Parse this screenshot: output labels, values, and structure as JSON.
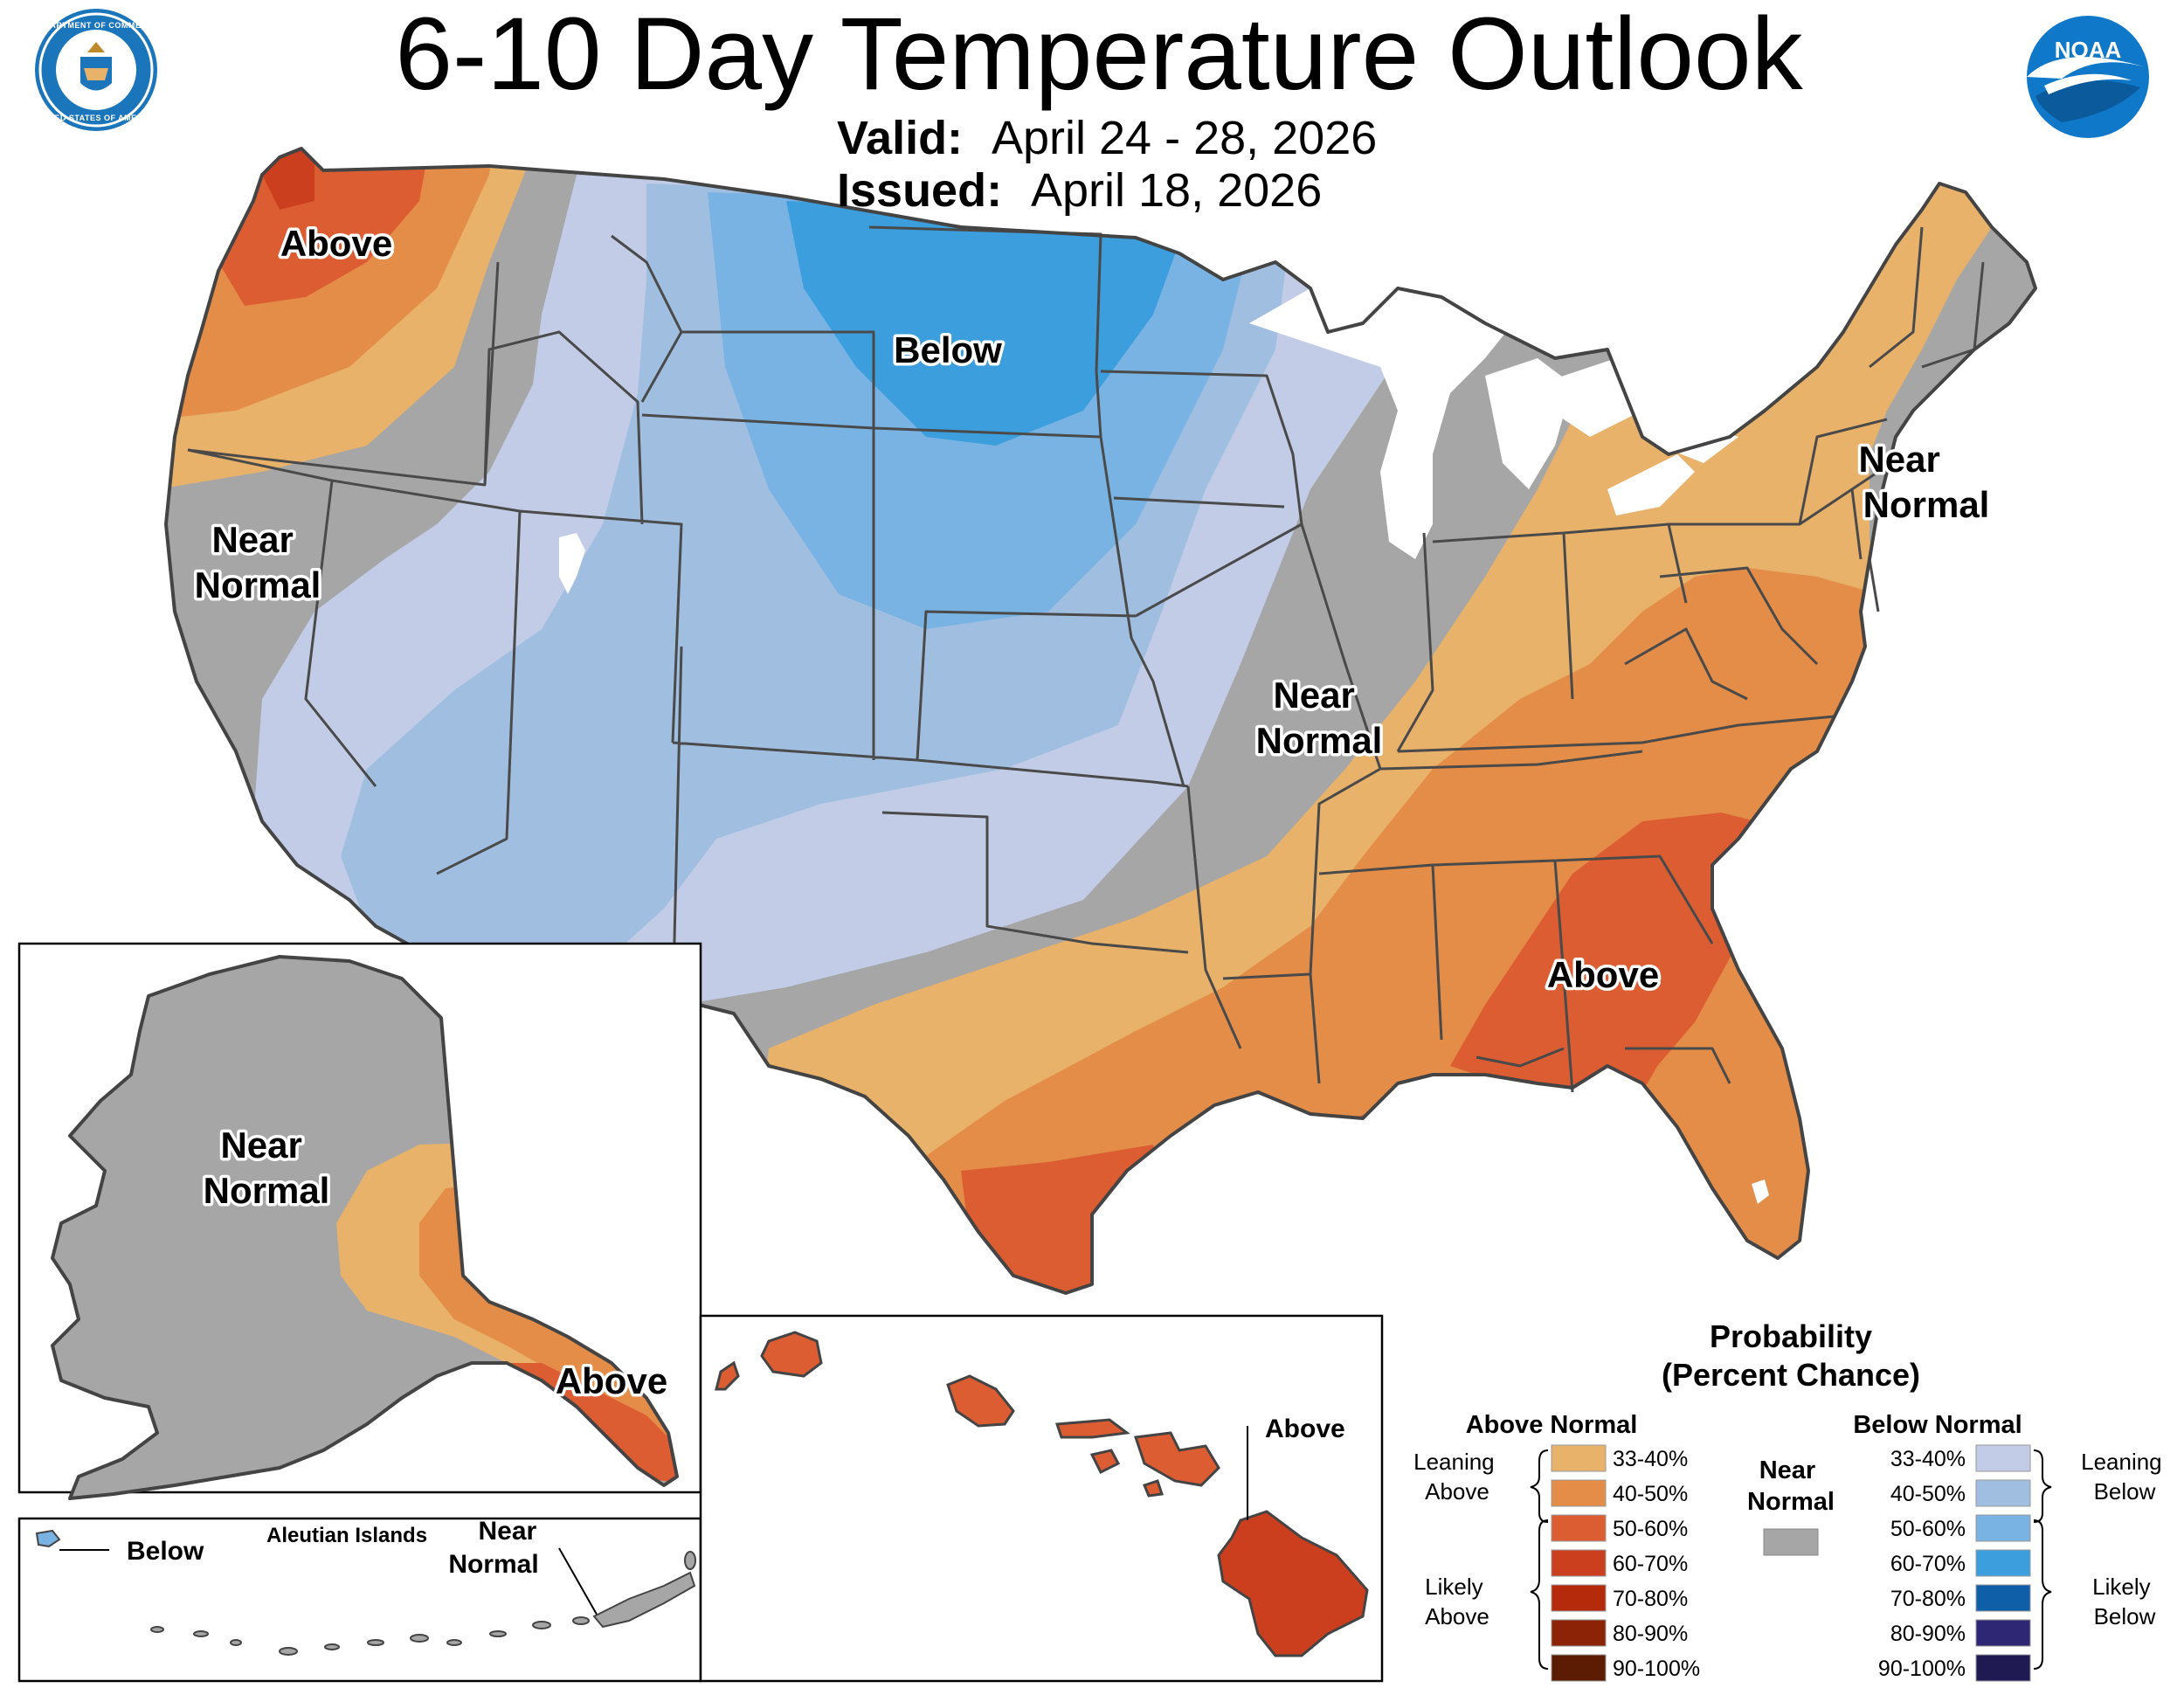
{
  "header": {
    "title": "6-10 Day Temperature Outlook",
    "valid_label": "Valid:",
    "valid_value": "April 24 - 28, 2026",
    "issued_label": "Issued:",
    "issued_value": "April 18, 2026",
    "noaa_logo_text": "NOAA",
    "commerce_seal_top": "DEPARTMENT OF COMMERCE",
    "commerce_seal_bottom": "UNITED STATES OF AMERICA"
  },
  "colors": {
    "above_33_40": "#e8b26a",
    "above_40_50": "#e38d48",
    "above_50_60": "#dd5d32",
    "above_60_70": "#cb3f1f",
    "above_70_80": "#b52a0a",
    "above_80_90": "#8c2306",
    "above_90_100": "#5c1c04",
    "near_normal": "#a6a6a6",
    "below_33_40": "#c2cce6",
    "below_40_50": "#a0bfe0",
    "below_50_60": "#79b3e3",
    "below_60_70": "#3c9edd",
    "below_70_80": "#0f5ea8",
    "below_80_90": "#2e2774",
    "below_90_100": "#1f1b52",
    "water": "#ffffff"
  },
  "map_labels": {
    "conus_northwest": "Above",
    "conus_west": "Near\nNormal",
    "conus_north_plains": "Below",
    "conus_midwest": "Near\nNormal",
    "conus_northeast": "Near\nNormal",
    "conus_southeast": "Above"
  },
  "alaska": {
    "label_interior": "Near\nNormal",
    "label_southeast": "Above"
  },
  "aleutians": {
    "title": "Aleutian Islands",
    "label_west": "Below",
    "label_east": "Near\nNormal"
  },
  "hawaii": {
    "label": "Above"
  },
  "legend": {
    "title_line1": "Probability",
    "title_line2": "(Percent Chance)",
    "above_header": "Above Normal",
    "below_header": "Below Normal",
    "near_header": "Near\nNormal",
    "leaning_above": "Leaning\nAbove",
    "likely_above": "Likely\nAbove",
    "leaning_below": "Leaning\nBelow",
    "likely_below": "Likely\nBelow",
    "above_ranges": [
      "33-40%",
      "40-50%",
      "50-60%",
      "60-70%",
      "70-80%",
      "80-90%",
      "90-100%"
    ],
    "below_ranges": [
      "33-40%",
      "40-50%",
      "50-60%",
      "60-70%",
      "70-80%",
      "80-90%",
      "90-100%"
    ]
  }
}
